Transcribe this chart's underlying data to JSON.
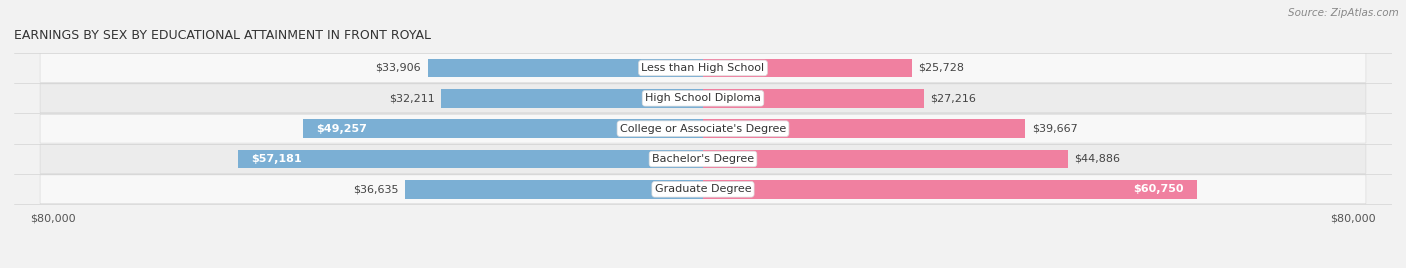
{
  "title": "EARNINGS BY SEX BY EDUCATIONAL ATTAINMENT IN FRONT ROYAL",
  "source": "Source: ZipAtlas.com",
  "categories": [
    "Less than High School",
    "High School Diploma",
    "College or Associate's Degree",
    "Bachelor's Degree",
    "Graduate Degree"
  ],
  "male_values": [
    33906,
    32211,
    49257,
    57181,
    36635
  ],
  "female_values": [
    25728,
    27216,
    39667,
    44886,
    60750
  ],
  "male_color": "#7bafd4",
  "female_color": "#f080a0",
  "max_value": 80000,
  "background_color": "#f2f2f2",
  "row_bg_light": "#f8f8f8",
  "row_bg_dark": "#ececec",
  "title_fontsize": 9,
  "source_fontsize": 7.5,
  "axis_label_fontsize": 8,
  "bar_label_fontsize": 8,
  "cat_label_fontsize": 8
}
